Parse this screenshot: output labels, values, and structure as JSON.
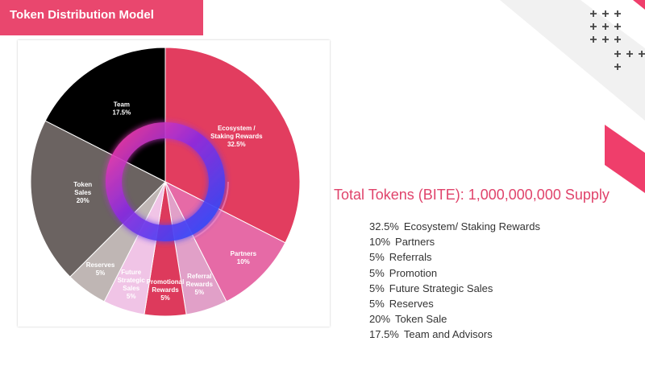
{
  "header": {
    "title": "Token Distribution Model"
  },
  "summary": {
    "title": "Total Tokens (BITE): 1,000,000,000 Supply"
  },
  "legend": [
    {
      "pct": "32.5%",
      "label": "Ecosystem/ Staking Rewards"
    },
    {
      "pct": "10%",
      "label": "Partners"
    },
    {
      "pct": "5%",
      "label": "Referrals"
    },
    {
      "pct": "5%",
      "label": "Promotion"
    },
    {
      "pct": "5%",
      "label": "Future Strategic Sales"
    },
    {
      "pct": "5%",
      "label": "Reserves"
    },
    {
      "pct": "20%",
      "label": "Token Sale"
    },
    {
      "pct": "17.5%",
      "label": "Team and Advisors"
    }
  ],
  "chart_data": {
    "type": "pie",
    "slices": [
      {
        "label": "Ecosystem / Staking Rewards",
        "value": 32.5,
        "value_label": "32.5%",
        "color": "#e23d5f"
      },
      {
        "label": "Partners",
        "value": 10,
        "value_label": "10%",
        "color": "#e66aa6"
      },
      {
        "label": "Referral Rewards",
        "value": 5,
        "value_label": "5%",
        "color": "#e1a0c8"
      },
      {
        "label": "Promotional Rewards",
        "value": 5,
        "value_label": "5%",
        "color": "#dd3a5c"
      },
      {
        "label": "Future Strategic Sales",
        "value": 5,
        "value_label": "5%",
        "color": "#f0c4e6"
      },
      {
        "label": "Reserves",
        "value": 5,
        "value_label": "5%",
        "color": "#bfb6b4"
      },
      {
        "label": "Token Sales",
        "value": 20,
        "value_label": "20%",
        "color": "#6b6361"
      },
      {
        "label": "Team",
        "value": 17.5,
        "value_label": "17.5%",
        "color": "#000000"
      }
    ]
  }
}
